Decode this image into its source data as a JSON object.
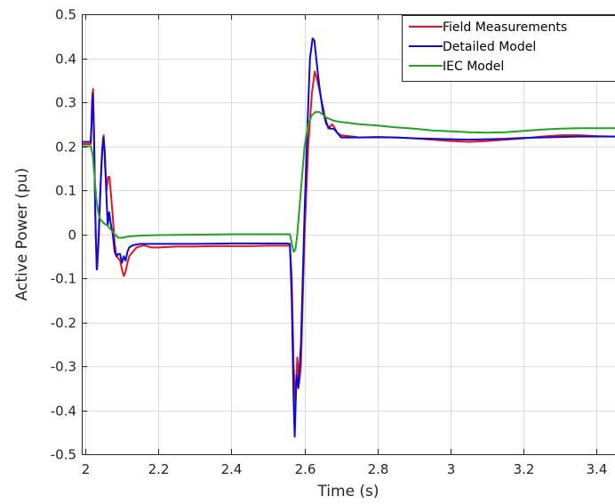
{
  "chart_data": {
    "type": "line",
    "title": "",
    "xlabel": "Time (s)",
    "ylabel": "Active Power (pu)",
    "xlim": [
      1.99,
      3.45
    ],
    "ylim": [
      -0.5,
      0.5
    ],
    "x_ticks": [
      "2",
      "2.2",
      "2.4",
      "2.6",
      "2.8",
      "3",
      "3.2",
      "3.4"
    ],
    "x_tick_values": [
      2,
      2.2,
      2.4,
      2.6,
      2.8,
      3,
      3.2,
      3.4
    ],
    "y_ticks": [
      "0.5",
      "0.4",
      "0.3",
      "0.2",
      "0.1",
      "0",
      "-0.1",
      "-0.2",
      "-0.3",
      "-0.4",
      "-0.5"
    ],
    "y_tick_values": [
      0.5,
      0.4,
      0.3,
      0.2,
      0.1,
      0,
      -0.1,
      -0.2,
      -0.3,
      -0.4,
      -0.5
    ],
    "grid": true,
    "legend_position": "top-right",
    "series": [
      {
        "name": "Field Measurements",
        "color": "#e8141a",
        "points": [
          [
            1.99,
            0.205
          ],
          [
            2.015,
            0.205
          ],
          [
            2.018,
            0.3
          ],
          [
            2.021,
            0.33
          ],
          [
            2.024,
            0.2
          ],
          [
            2.028,
            0.0
          ],
          [
            2.032,
            -0.08
          ],
          [
            2.037,
            0.0
          ],
          [
            2.042,
            0.12
          ],
          [
            2.047,
            0.2
          ],
          [
            2.05,
            0.225
          ],
          [
            2.054,
            0.15
          ],
          [
            2.058,
            0.1
          ],
          [
            2.062,
            0.13
          ],
          [
            2.066,
            0.13
          ],
          [
            2.07,
            0.09
          ],
          [
            2.075,
            0.04
          ],
          [
            2.08,
            -0.02
          ],
          [
            2.085,
            -0.05
          ],
          [
            2.09,
            -0.055
          ],
          [
            2.095,
            -0.06
          ],
          [
            2.1,
            -0.08
          ],
          [
            2.105,
            -0.095
          ],
          [
            2.11,
            -0.085
          ],
          [
            2.115,
            -0.065
          ],
          [
            2.12,
            -0.05
          ],
          [
            2.13,
            -0.04
          ],
          [
            2.14,
            -0.03
          ],
          [
            2.16,
            -0.025
          ],
          [
            2.18,
            -0.03
          ],
          [
            2.2,
            -0.03
          ],
          [
            2.25,
            -0.028
          ],
          [
            2.3,
            -0.028
          ],
          [
            2.35,
            -0.027
          ],
          [
            2.4,
            -0.027
          ],
          [
            2.45,
            -0.027
          ],
          [
            2.5,
            -0.026
          ],
          [
            2.55,
            -0.026
          ],
          [
            2.56,
            -0.026
          ],
          [
            2.565,
            -0.1
          ],
          [
            2.57,
            -0.3
          ],
          [
            2.575,
            -0.38
          ],
          [
            2.58,
            -0.28
          ],
          [
            2.585,
            -0.34
          ],
          [
            2.59,
            -0.3
          ],
          [
            2.6,
            0.0
          ],
          [
            2.61,
            0.2
          ],
          [
            2.62,
            0.32
          ],
          [
            2.628,
            0.37
          ],
          [
            2.635,
            0.35
          ],
          [
            2.645,
            0.31
          ],
          [
            2.655,
            0.27
          ],
          [
            2.665,
            0.24
          ],
          [
            2.675,
            0.25
          ],
          [
            2.68,
            0.245
          ],
          [
            2.69,
            0.23
          ],
          [
            2.7,
            0.225
          ],
          [
            2.75,
            0.22
          ],
          [
            2.8,
            0.22
          ],
          [
            2.85,
            0.22
          ],
          [
            2.9,
            0.218
          ],
          [
            2.95,
            0.215
          ],
          [
            3.0,
            0.212
          ],
          [
            3.05,
            0.21
          ],
          [
            3.1,
            0.212
          ],
          [
            3.15,
            0.215
          ],
          [
            3.2,
            0.218
          ],
          [
            3.25,
            0.222
          ],
          [
            3.3,
            0.225
          ],
          [
            3.35,
            0.225
          ],
          [
            3.4,
            0.223
          ],
          [
            3.45,
            0.222
          ]
        ]
      },
      {
        "name": "Detailed Model",
        "color": "#0a0adc",
        "points": [
          [
            1.99,
            0.21
          ],
          [
            2.014,
            0.21
          ],
          [
            2.017,
            0.25
          ],
          [
            2.02,
            0.32
          ],
          [
            2.023,
            0.25
          ],
          [
            2.027,
            0.05
          ],
          [
            2.031,
            -0.08
          ],
          [
            2.035,
            -0.03
          ],
          [
            2.04,
            0.08
          ],
          [
            2.045,
            0.18
          ],
          [
            2.049,
            0.22
          ],
          [
            2.053,
            0.19
          ],
          [
            2.057,
            0.1
          ],
          [
            2.061,
            0.02
          ],
          [
            2.065,
            0.05
          ],
          [
            2.07,
            0.02
          ],
          [
            2.075,
            0.0
          ],
          [
            2.08,
            -0.04
          ],
          [
            2.085,
            -0.05
          ],
          [
            2.09,
            -0.045
          ],
          [
            2.095,
            -0.045
          ],
          [
            2.1,
            -0.065
          ],
          [
            2.105,
            -0.05
          ],
          [
            2.11,
            -0.06
          ],
          [
            2.115,
            -0.04
          ],
          [
            2.12,
            -0.03
          ],
          [
            2.13,
            -0.025
          ],
          [
            2.15,
            -0.022
          ],
          [
            2.2,
            -0.022
          ],
          [
            2.3,
            -0.022
          ],
          [
            2.4,
            -0.021
          ],
          [
            2.5,
            -0.021
          ],
          [
            2.55,
            -0.021
          ],
          [
            2.56,
            -0.022
          ],
          [
            2.565,
            -0.15
          ],
          [
            2.57,
            -0.38
          ],
          [
            2.573,
            -0.46
          ],
          [
            2.578,
            -0.32
          ],
          [
            2.583,
            -0.35
          ],
          [
            2.59,
            -0.25
          ],
          [
            2.6,
            0.05
          ],
          [
            2.608,
            0.25
          ],
          [
            2.615,
            0.4
          ],
          [
            2.622,
            0.445
          ],
          [
            2.627,
            0.44
          ],
          [
            2.632,
            0.4
          ],
          [
            2.64,
            0.34
          ],
          [
            2.65,
            0.28
          ],
          [
            2.66,
            0.25
          ],
          [
            2.67,
            0.24
          ],
          [
            2.68,
            0.24
          ],
          [
            2.69,
            0.23
          ],
          [
            2.7,
            0.22
          ],
          [
            2.75,
            0.22
          ],
          [
            2.8,
            0.221
          ],
          [
            2.85,
            0.22
          ],
          [
            2.9,
            0.218
          ],
          [
            2.95,
            0.217
          ],
          [
            3.0,
            0.216
          ],
          [
            3.05,
            0.215
          ],
          [
            3.1,
            0.216
          ],
          [
            3.15,
            0.217
          ],
          [
            3.2,
            0.219
          ],
          [
            3.25,
            0.22
          ],
          [
            3.3,
            0.221
          ],
          [
            3.35,
            0.222
          ],
          [
            3.4,
            0.222
          ],
          [
            3.45,
            0.222
          ]
        ]
      },
      {
        "name": "IEC Model",
        "color": "#22a322",
        "points": [
          [
            1.99,
            0.2
          ],
          [
            2.015,
            0.2
          ],
          [
            2.02,
            0.18
          ],
          [
            2.025,
            0.13
          ],
          [
            2.03,
            0.08
          ],
          [
            2.035,
            0.05
          ],
          [
            2.04,
            0.035
          ],
          [
            2.05,
            0.025
          ],
          [
            2.06,
            0.02
          ],
          [
            2.07,
            0.01
          ],
          [
            2.08,
            0.0
          ],
          [
            2.09,
            -0.008
          ],
          [
            2.1,
            -0.008
          ],
          [
            2.12,
            -0.005
          ],
          [
            2.15,
            -0.003
          ],
          [
            2.2,
            -0.002
          ],
          [
            2.3,
            -0.001
          ],
          [
            2.4,
            0.0
          ],
          [
            2.5,
            0.0
          ],
          [
            2.56,
            0.0
          ],
          [
            2.565,
            -0.02
          ],
          [
            2.57,
            -0.04
          ],
          [
            2.575,
            -0.035
          ],
          [
            2.58,
            0.0
          ],
          [
            2.59,
            0.1
          ],
          [
            2.6,
            0.2
          ],
          [
            2.61,
            0.25
          ],
          [
            2.62,
            0.27
          ],
          [
            2.63,
            0.278
          ],
          [
            2.64,
            0.278
          ],
          [
            2.65,
            0.272
          ],
          [
            2.66,
            0.265
          ],
          [
            2.68,
            0.258
          ],
          [
            2.7,
            0.255
          ],
          [
            2.75,
            0.25
          ],
          [
            2.8,
            0.247
          ],
          [
            2.85,
            0.243
          ],
          [
            2.9,
            0.24
          ],
          [
            2.95,
            0.236
          ],
          [
            3.0,
            0.234
          ],
          [
            3.05,
            0.232
          ],
          [
            3.1,
            0.231
          ],
          [
            3.15,
            0.232
          ],
          [
            3.2,
            0.235
          ],
          [
            3.25,
            0.238
          ],
          [
            3.3,
            0.24
          ],
          [
            3.35,
            0.241
          ],
          [
            3.4,
            0.241
          ],
          [
            3.45,
            0.241
          ]
        ]
      }
    ]
  }
}
